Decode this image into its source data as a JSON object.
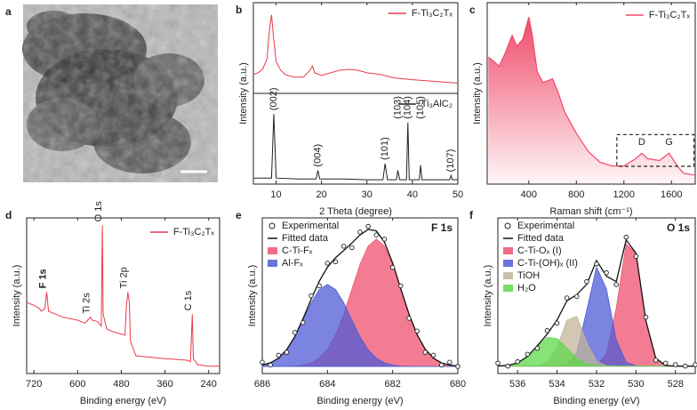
{
  "chart_data": [
    {
      "panel": "a",
      "type": "image"
    },
    {
      "panel": "b",
      "type": "stacked-line",
      "xlabel": "2 Theta (degree)",
      "ylabel": "Intensity (a.u.)",
      "xlim": [
        5,
        50
      ],
      "xticks": [
        10,
        20,
        30,
        40,
        50
      ],
      "series": [
        {
          "name": "F-Ti₃C₂Tₓ",
          "color": "#e8394a",
          "ylim": [
            0,
            100
          ],
          "x": [
            5,
            6,
            7,
            8,
            8.5,
            9,
            9.5,
            10,
            11,
            12,
            14,
            16,
            17.5,
            18,
            18.5,
            20,
            22,
            24,
            26,
            28,
            30,
            33,
            36,
            40,
            45,
            50
          ],
          "values": [
            20,
            22,
            26,
            38,
            70,
            90,
            60,
            35,
            25,
            20,
            17,
            17,
            25,
            30,
            22,
            19,
            22,
            25,
            26,
            25,
            22,
            20,
            16,
            14,
            12,
            10
          ]
        },
        {
          "name": "Ti₃AlC₂",
          "color": "#222222",
          "ylim": [
            0,
            100
          ],
          "x": [
            5,
            9,
            9.5,
            10,
            15,
            18.8,
            19.2,
            19.6,
            25,
            30,
            33.5,
            34,
            34.5,
            36.5,
            36.8,
            37.2,
            38.7,
            39,
            39.3,
            41.5,
            41.8,
            42.1,
            48.2,
            48.5,
            48.8,
            50
          ],
          "values": [
            5,
            5,
            80,
            5,
            4,
            4,
            14,
            4,
            4,
            3,
            3,
            22,
            3,
            3,
            14,
            3,
            3,
            70,
            3,
            3,
            20,
            3,
            3,
            8,
            3,
            3
          ],
          "annotations": [
            {
              "text": "(002)",
              "x": 9.5
            },
            {
              "text": "(004)",
              "x": 19.2
            },
            {
              "text": "(101)",
              "x": 34
            },
            {
              "text": "(103)",
              "x": 36.8
            },
            {
              "text": "(104)",
              "x": 39
            },
            {
              "text": "(105)",
              "x": 41.8
            },
            {
              "text": "(107)",
              "x": 48.5
            }
          ]
        }
      ]
    },
    {
      "panel": "c",
      "type": "area",
      "xlabel": "Raman shift (cm⁻¹)",
      "ylabel": "Intensity (a.u.)",
      "xlim": [
        50,
        1800
      ],
      "xticks": [
        400,
        800,
        1200,
        1600
      ],
      "ylim": [
        0,
        100
      ],
      "series": [
        {
          "name": "F-Ti₃C₂Tₓ",
          "color": "#f04a6a",
          "x": [
            60,
            100,
            150,
            200,
            260,
            300,
            350,
            400,
            430,
            470,
            520,
            600,
            650,
            700,
            800,
            900,
            1000,
            1100,
            1200,
            1300,
            1350,
            1400,
            1500,
            1580,
            1650,
            1700,
            1800
          ],
          "values": [
            70,
            68,
            65,
            72,
            82,
            76,
            80,
            92,
            82,
            62,
            56,
            58,
            50,
            40,
            28,
            18,
            12,
            10,
            10,
            14,
            17,
            14,
            13,
            17,
            10,
            6,
            5
          ]
        }
      ],
      "annotations": [
        {
          "text": "D",
          "x": 1350
        },
        {
          "text": "G",
          "x": 1580
        }
      ]
    },
    {
      "panel": "d",
      "type": "line",
      "xlabel": "Binding energy (eV)",
      "ylabel": "Intensity (a.u.)",
      "xlim": [
        740,
        210
      ],
      "xticks": [
        720,
        600,
        480,
        360,
        240
      ],
      "ylim": [
        0,
        105
      ],
      "series": [
        {
          "name": "F-Ti₃C₂Tₓ",
          "color": "#e8394a",
          "x": [
            740,
            720,
            705,
            700,
            690,
            685,
            680,
            660,
            640,
            600,
            580,
            565,
            560,
            545,
            535,
            532,
            530,
            520,
            500,
            470,
            466,
            462,
            458,
            455,
            440,
            400,
            360,
            300,
            290,
            285,
            282,
            270,
            240,
            210
          ],
          "values": [
            48,
            46,
            44,
            42,
            44,
            55,
            42,
            40,
            38,
            36,
            34,
            38,
            36,
            35,
            32,
            100,
            40,
            30,
            28,
            26,
            45,
            55,
            48,
            22,
            12,
            11,
            10,
            9,
            8,
            40,
            10,
            6,
            5,
            5
          ]
        }
      ],
      "annotations": [
        {
          "text": "F 1s",
          "x": 685,
          "color": "#e8394a"
        },
        {
          "text": "Ti 2s",
          "x": 565
        },
        {
          "text": "O 1s",
          "x": 532
        },
        {
          "text": "Ti 2p",
          "x": 462
        },
        {
          "text": "C 1s",
          "x": 285
        }
      ]
    },
    {
      "panel": "e",
      "type": "fit",
      "title": "F 1s",
      "xlabel": "Binding energy (eV)",
      "ylabel": "Intensity (a.u.)",
      "xlim": [
        686,
        680
      ],
      "xticks": [
        686,
        684,
        682,
        680
      ],
      "ylim": [
        -5,
        105
      ],
      "series": [
        {
          "name": "Experimental",
          "style": "points",
          "color": "#222222",
          "x": [
            686,
            685.75,
            685.5,
            685.25,
            685,
            684.75,
            684.5,
            684.25,
            684,
            683.75,
            683.5,
            683.25,
            683,
            682.75,
            682.5,
            682.25,
            682,
            681.75,
            681.5,
            681.25,
            681,
            680.75,
            680.5,
            680.25,
            680
          ],
          "values": [
            3,
            1,
            8,
            10,
            24,
            31,
            50,
            57,
            73,
            74,
            85,
            84,
            95,
            99,
            93,
            90,
            70,
            57,
            34,
            25,
            10,
            8,
            1,
            3,
            0
          ]
        },
        {
          "name": "Fitted data",
          "style": "line",
          "color": "#111111",
          "x": [
            686,
            685.75,
            685.5,
            685.25,
            685,
            684.75,
            684.5,
            684.25,
            684,
            683.75,
            683.5,
            683.25,
            683,
            682.75,
            682.5,
            682.25,
            682,
            681.75,
            681.5,
            681.25,
            681,
            680.75,
            680.5,
            680.25,
            680
          ],
          "values": [
            1,
            2.6,
            5.8,
            11.9,
            21.2,
            33.7,
            47.5,
            60.3,
            70.2,
            76.9,
            82,
            87.3,
            93,
            96.9,
            95.8,
            87.7,
            73.1,
            54.9,
            37.1,
            22.5,
            12.2,
            5.9,
            2.5,
            1,
            0.3
          ]
        },
        {
          "name": "C-Ti-Fₓ",
          "style": "fill",
          "color": "#f0506e",
          "x": [
            686,
            685.75,
            685.5,
            685.25,
            685,
            684.75,
            684.5,
            684.25,
            684,
            683.75,
            683.5,
            683.25,
            683,
            682.75,
            682.5,
            682.25,
            682,
            681.75,
            681.5,
            681.25,
            681,
            680.75,
            680.5,
            680.25,
            680
          ],
          "values": [
            0,
            0,
            0,
            0.1,
            0.3,
            1,
            2.5,
            5.9,
            12.2,
            22.5,
            37,
            54.6,
            72.1,
            85.1,
            90,
            85.1,
            72.1,
            54.6,
            37,
            22.5,
            12.2,
            5.9,
            2.5,
            1,
            0.3
          ]
        },
        {
          "name": "Al-Fₓ",
          "style": "fill",
          "color": "#4f5bd5",
          "x": [
            686,
            685.75,
            685.5,
            685.25,
            685,
            684.75,
            684.5,
            684.25,
            684,
            683.75,
            683.5,
            683.25,
            683,
            682.75,
            682.5,
            682.25,
            682,
            681.75,
            681.5,
            681.25,
            681,
            680.75,
            680.5,
            680.25,
            680
          ],
          "values": [
            1,
            2.6,
            5.8,
            11.8,
            20.9,
            32.7,
            45,
            54.4,
            58,
            54.4,
            45,
            32.7,
            20.9,
            11.8,
            5.8,
            2.6,
            1,
            0.3,
            0.1,
            0,
            0,
            0,
            0,
            0,
            0
          ]
        }
      ]
    },
    {
      "panel": "f",
      "type": "fit",
      "title": "O 1s",
      "xlabel": "Binding energy (eV)",
      "ylabel": "Intensity (a.u.)",
      "xlim": [
        537,
        527
      ],
      "xticks": [
        536,
        534,
        532,
        530,
        528
      ],
      "ylim": [
        -5,
        100
      ],
      "series": [
        {
          "name": "Experimental",
          "style": "points",
          "color": "#222222",
          "x": [
            537,
            536.5,
            536,
            535.5,
            535,
            534.5,
            534,
            533.5,
            533,
            532.5,
            532,
            531.5,
            531,
            530.5,
            530,
            529.5,
            529,
            528.5,
            528,
            527.5,
            527
          ],
          "values": [
            2,
            0,
            3,
            8,
            12,
            24,
            29,
            46,
            47,
            57,
            69,
            63,
            55,
            87,
            74,
            33,
            4,
            2,
            1,
            0,
            1
          ]
        },
        {
          "name": "Fitted data",
          "style": "line",
          "color": "#111111",
          "x": [
            537,
            536.5,
            536,
            535.5,
            535,
            534.5,
            534,
            533.5,
            533,
            532.5,
            532,
            531.5,
            531,
            530.5,
            530,
            529.5,
            529,
            528.5,
            528,
            527.5,
            527
          ],
          "values": [
            0.1,
            0.5,
            2.1,
            6.5,
            13.8,
            21.6,
            31.1,
            44.1,
            48.2,
            55.1,
            71.2,
            60.7,
            57,
            85.1,
            76.1,
            30.5,
            5.4,
            0.4,
            0,
            0,
            0
          ]
        },
        {
          "name": "C-Ti-Oₓ (I)",
          "style": "fill",
          "color": "#f0506e",
          "x": [
            537,
            536.5,
            536,
            535.5,
            535,
            534.5,
            534,
            533.5,
            533,
            532.5,
            532,
            531.5,
            531,
            530.5,
            530,
            529.5,
            529,
            528.5,
            528,
            527.5,
            527
          ],
          "values": [
            0,
            0,
            0,
            0,
            0,
            0,
            0,
            0,
            0,
            0,
            0.7,
            8.2,
            39.2,
            82.4,
            75.9,
            30.5,
            5.4,
            0.4,
            0,
            0,
            0
          ]
        },
        {
          "name": "C-Ti-(OH)ₓ (II)",
          "style": "fill",
          "color": "#4f5bd5",
          "x": [
            537,
            536.5,
            536,
            535.5,
            535,
            534.5,
            534,
            533.5,
            533,
            532.5,
            532,
            531.5,
            531,
            530.5,
            530,
            529.5,
            529,
            528.5,
            528,
            527.5,
            527
          ],
          "values": [
            0,
            0,
            0,
            0,
            0,
            0,
            0,
            1,
            9.2,
            37.5,
            66.9,
            52.2,
            17.8,
            2.7,
            0.2,
            0,
            0,
            0,
            0,
            0,
            0
          ]
        },
        {
          "name": "TiOH",
          "style": "fill",
          "color": "#c2b49a",
          "x": [
            537,
            536.5,
            536,
            535.5,
            535,
            534.5,
            534,
            533.5,
            533,
            532.5,
            532,
            531.5,
            531,
            530.5,
            530,
            529.5,
            529,
            528.5,
            528,
            527.5,
            527
          ],
          "values": [
            0,
            0,
            0,
            0,
            0.2,
            2.2,
            12.5,
            31,
            33.7,
            16,
            3.3,
            0.3,
            0,
            0,
            0,
            0,
            0,
            0,
            0,
            0,
            0
          ]
        },
        {
          "name": "H₂O",
          "style": "fill",
          "color": "#5fd84a",
          "x": [
            537,
            536.5,
            536,
            535.5,
            535,
            534.5,
            534,
            533.5,
            533,
            532.5,
            532,
            531.5,
            531,
            530.5,
            530,
            529.5,
            529,
            528.5,
            528,
            527.5,
            527
          ],
          "values": [
            0.1,
            0.5,
            2.1,
            6.5,
            13.6,
            19.4,
            18.6,
            12.1,
            5.3,
            1.6,
            0.3,
            0,
            0,
            0,
            0,
            0,
            0,
            0,
            0,
            0,
            0
          ]
        }
      ]
    }
  ]
}
